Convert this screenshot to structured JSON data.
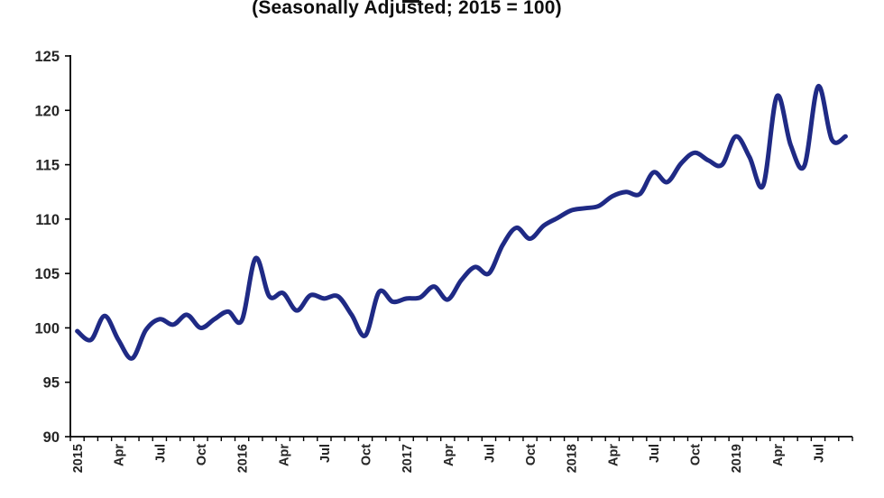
{
  "page": {
    "background": "#ffffff"
  },
  "title": {
    "line2": "(Seasonally Adjusted; 2015 = 100)"
  },
  "chart_data": {
    "type": "line",
    "title": "(Seasonally Adjusted; 2015 = 100)",
    "smoothed": true,
    "grid": "off",
    "legend": "none",
    "line_color": "#1f2a85",
    "line_width": 5,
    "axis_color": "#000000",
    "tick_label_color": "#262626",
    "ylim": [
      90,
      125
    ],
    "y_ticks": [
      90,
      95,
      100,
      105,
      110,
      115,
      120,
      125
    ],
    "x_axis": {
      "label_every": 3,
      "labels": [
        "2015",
        "Apr",
        "Jul",
        "Oct",
        "2016",
        "Apr",
        "Jul",
        "Oct",
        "2017",
        "Apr",
        "Jul",
        "Oct",
        "2018",
        "Apr",
        "Jul",
        "Oct",
        "2019",
        "Apr",
        "Jul"
      ]
    },
    "x": [
      "Jan 2015",
      "Feb 2015",
      "Mar 2015",
      "Apr 2015",
      "May 2015",
      "Jun 2015",
      "Jul 2015",
      "Aug 2015",
      "Sep 2015",
      "Oct 2015",
      "Nov 2015",
      "Dec 2015",
      "Jan 2016",
      "Feb 2016",
      "Mar 2016",
      "Apr 2016",
      "May 2016",
      "Jun 2016",
      "Jul 2016",
      "Aug 2016",
      "Sep 2016",
      "Oct 2016",
      "Nov 2016",
      "Dec 2016",
      "Jan 2017",
      "Feb 2017",
      "Mar 2017",
      "Apr 2017",
      "May 2017",
      "Jun 2017",
      "Jul 2017",
      "Aug 2017",
      "Sep 2017",
      "Oct 2017",
      "Nov 2017",
      "Dec 2017",
      "Jan 2018",
      "Feb 2018",
      "Mar 2018",
      "Apr 2018",
      "May 2018",
      "Jun 2018",
      "Jul 2018",
      "Aug 2018",
      "Sep 2018",
      "Oct 2018",
      "Nov 2018",
      "Dec 2018",
      "Jan 2019",
      "Feb 2019",
      "Mar 2019",
      "Apr 2019",
      "May 2019",
      "Jun 2019",
      "Jul 2019",
      "Aug 2019",
      "Sep 2019"
    ],
    "values": [
      99.7,
      98.9,
      101.1,
      98.9,
      97.2,
      99.8,
      100.8,
      100.3,
      101.2,
      100.0,
      100.8,
      101.5,
      100.7,
      106.4,
      102.9,
      103.2,
      101.6,
      103.0,
      102.7,
      102.9,
      101.2,
      99.3,
      103.3,
      102.4,
      102.7,
      102.8,
      103.8,
      102.6,
      104.4,
      105.6,
      105.0,
      107.6,
      109.2,
      108.2,
      109.4,
      110.1,
      110.8,
      111.0,
      111.2,
      112.1,
      112.5,
      112.3,
      114.3,
      113.4,
      115.1,
      116.1,
      115.4,
      115.0,
      117.6,
      115.7,
      113.1,
      121.3,
      116.8,
      114.9,
      122.2,
      117.3,
      117.6
    ]
  }
}
